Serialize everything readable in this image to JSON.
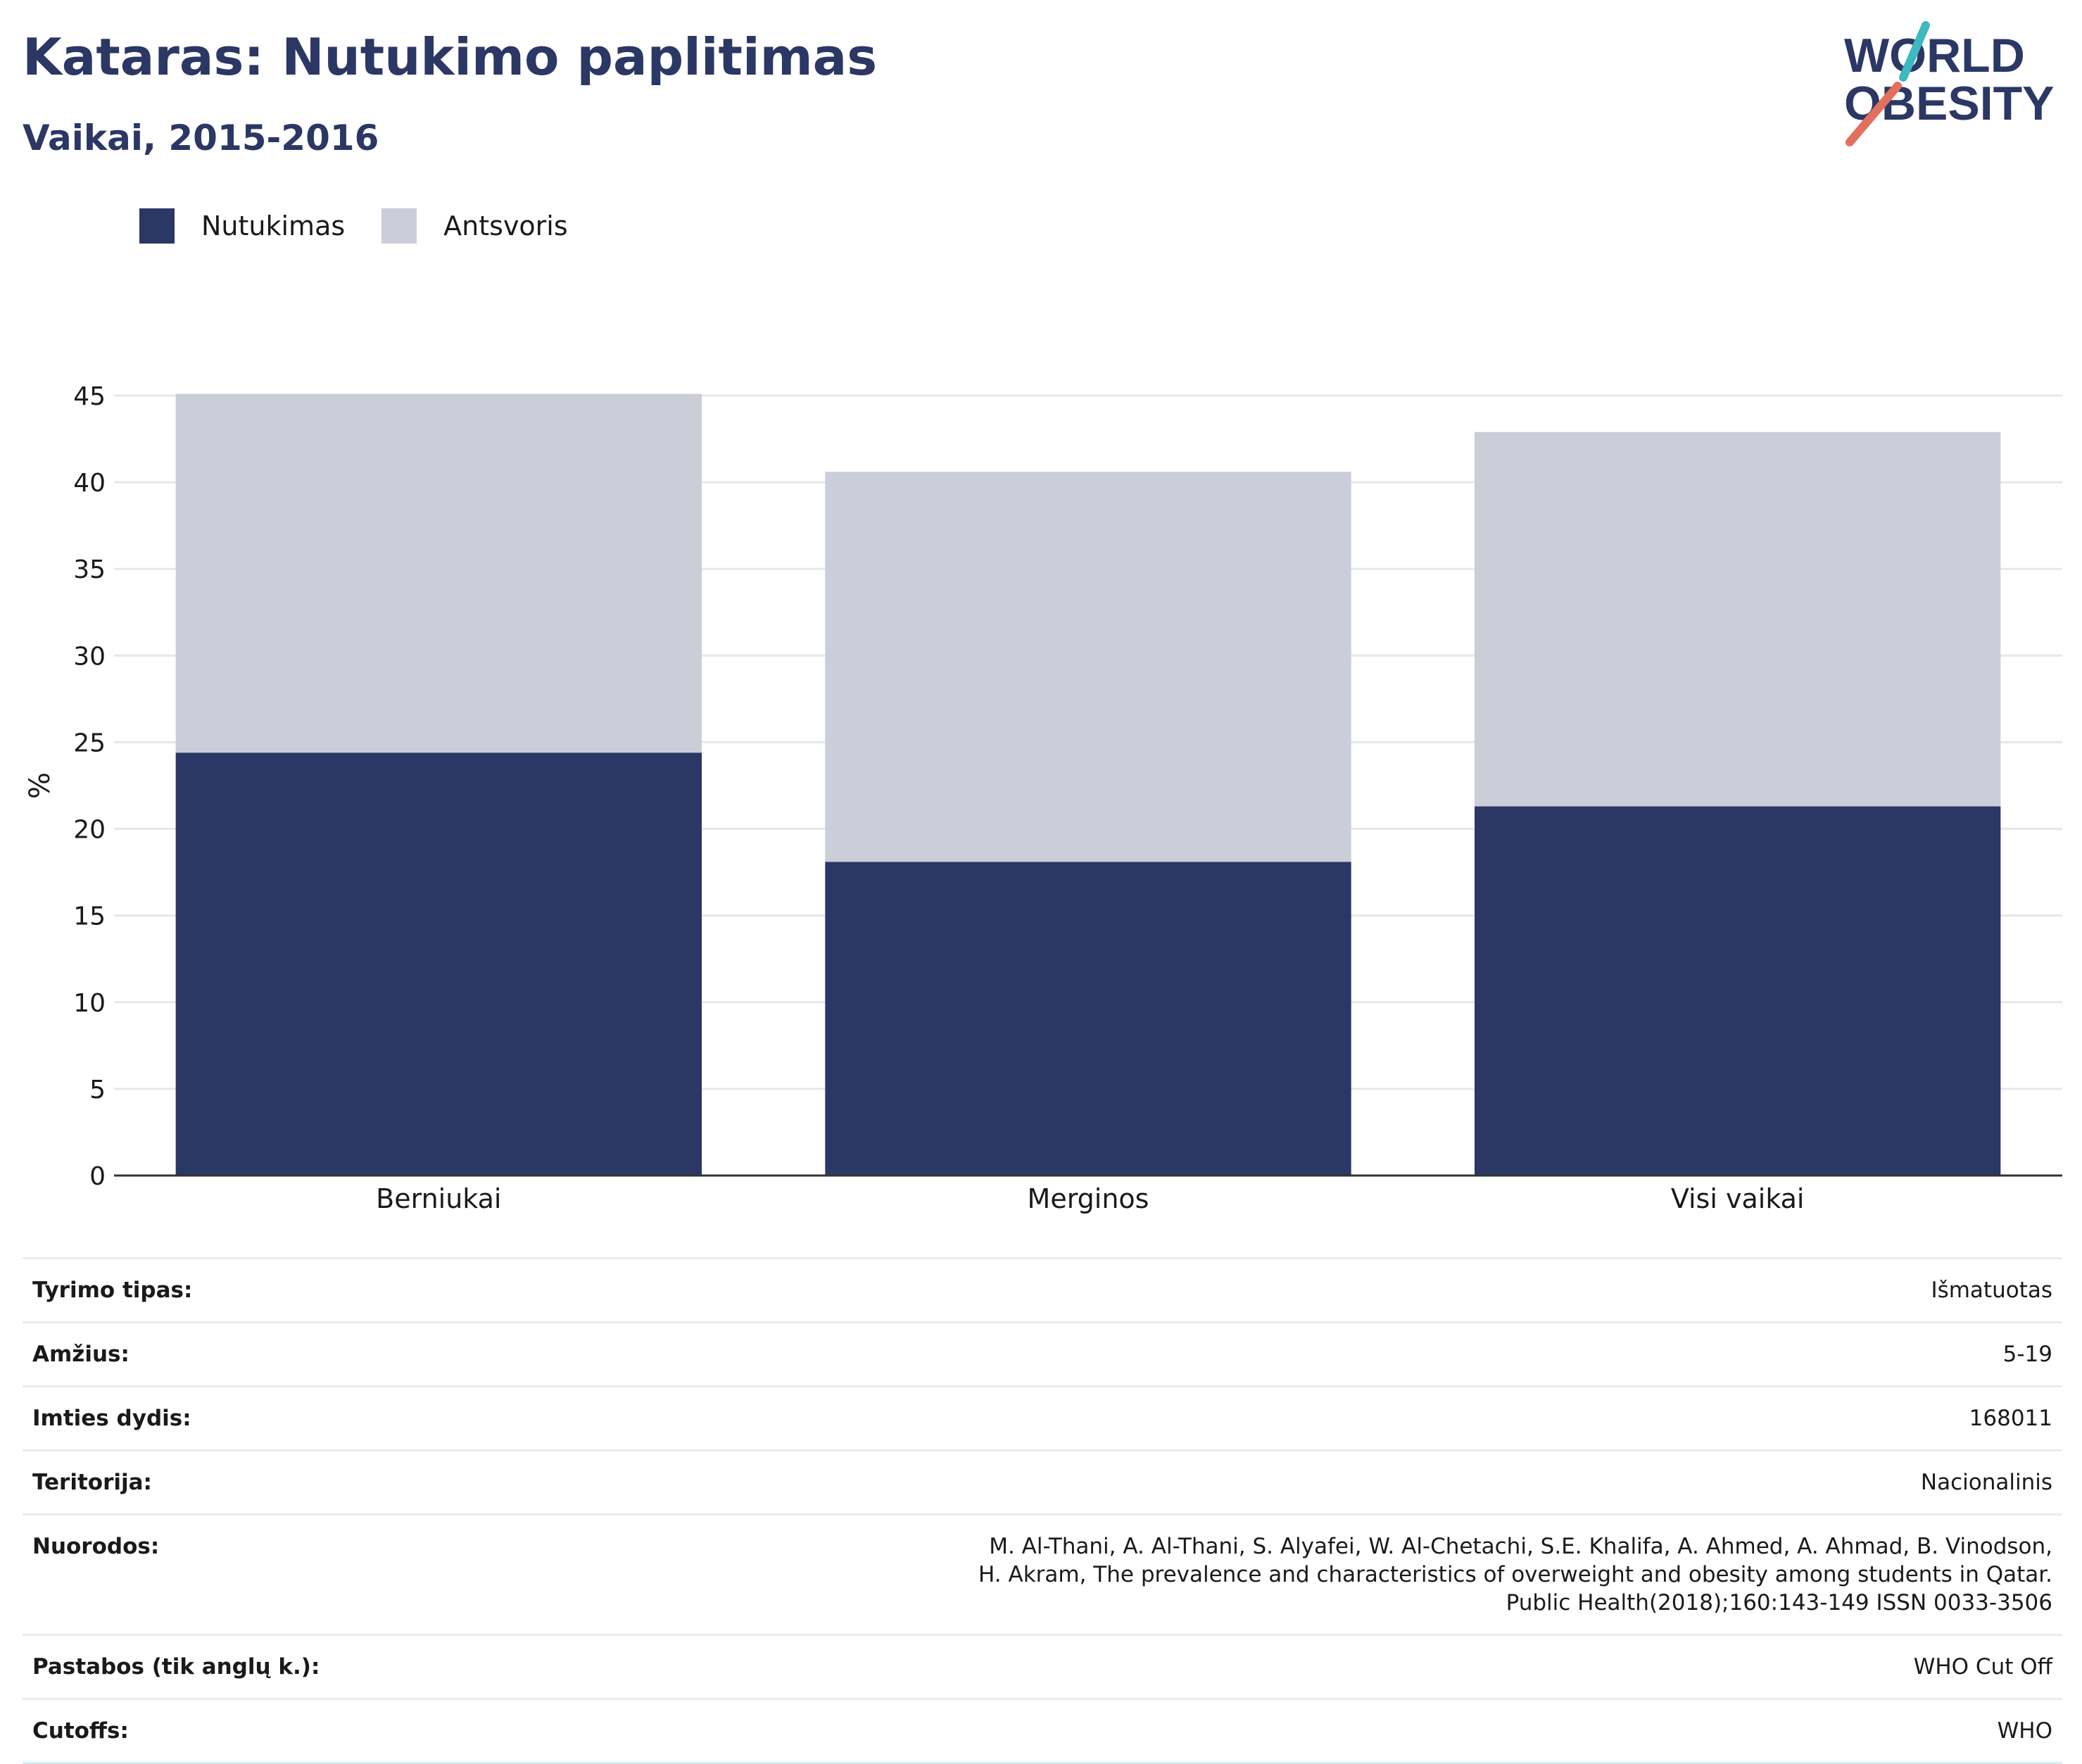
{
  "header": {
    "title": "Kataras: Nutukimo paplitimas",
    "subtitle": "Vaikai, 2015-2016"
  },
  "logo": {
    "line1": "WORLD",
    "line2": "OBESITY"
  },
  "colors": {
    "obesity": "#2b3764",
    "overweight": "#cbcdd8",
    "title": "#2b3764",
    "logo_teal": "#3fb8c0",
    "logo_red": "#e36f5f"
  },
  "chart_data": {
    "type": "bar",
    "stacked": true,
    "categories": [
      "Berniukai",
      "Merginos",
      "Visi vaikai"
    ],
    "series": [
      {
        "name": "Nutukimas",
        "values": [
          24.4,
          18.1,
          21.3
        ]
      },
      {
        "name": "Antsvoris",
        "values": [
          20.7,
          22.5,
          21.6
        ]
      }
    ],
    "ylabel": "%",
    "ylim": [
      0,
      45
    ],
    "yticks": [
      0,
      5,
      10,
      15,
      20,
      25,
      30,
      35,
      40,
      45
    ],
    "grid": true,
    "legend": "top-left"
  },
  "info": [
    {
      "label": "Tyrimo tipas:",
      "value": "Išmatuotas"
    },
    {
      "label": "Amžius:",
      "value": "5-19"
    },
    {
      "label": "Imties dydis:",
      "value": "168011"
    },
    {
      "label": "Teritorija:",
      "value": "Nacionalinis"
    },
    {
      "label": "Nuorodos:",
      "value": "M. Al-Thani, A. Al-Thani, S. Alyafei, W. Al-Chetachi, S.E. Khalifa, A. Ahmed, A. Ahmad, B. Vinodson, H. Akram, The prevalence and characteristics of overweight and obesity among students in Qatar. Public Health(2018);160:143-149 ISSN 0033-3506"
    },
    {
      "label": "Pastabos (tik anglų k.):",
      "value": "WHO Cut Off"
    },
    {
      "label": "Cutoffs:",
      "value": "WHO"
    }
  ]
}
